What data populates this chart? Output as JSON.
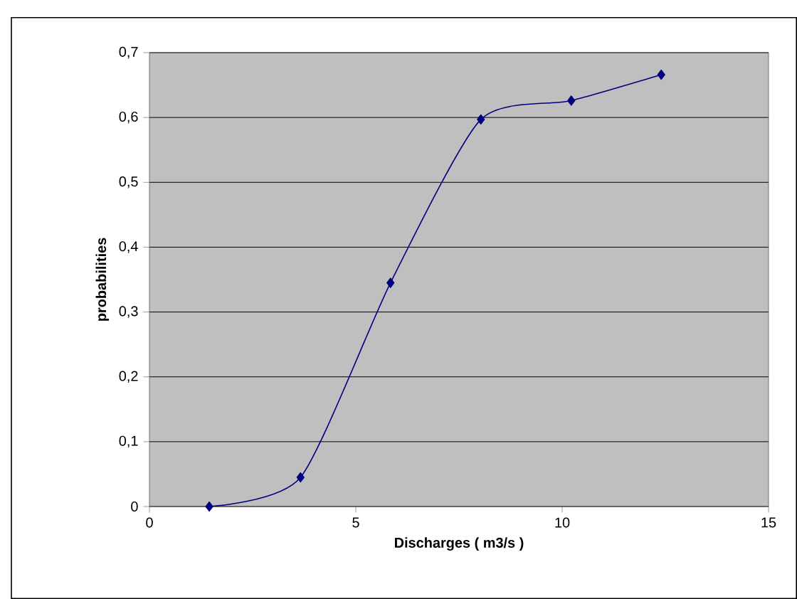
{
  "chart_data": {
    "type": "line",
    "xlabel": "Discharges ( m3/s )",
    "ylabel": "probabilities",
    "x": [
      1.45,
      3.66,
      5.84,
      8.03,
      10.22,
      12.4
    ],
    "series": [
      {
        "color": "#000080",
        "values": [
          0,
          0.045,
          0.345,
          0.597,
          0.626,
          0.666
        ]
      }
    ],
    "xlim": [
      0,
      15
    ],
    "xticks": [
      0,
      5,
      10,
      15
    ],
    "ylim": [
      0,
      0.7
    ],
    "yticks": [
      0,
      {
        "value": 0.1,
        "label": "0,1"
      },
      {
        "value": 0.2,
        "label": "0,2"
      },
      {
        "value": 0.3,
        "label": "0,3"
      },
      {
        "value": 0.4,
        "label": "0,4"
      },
      {
        "value": 0.5,
        "label": "0,5"
      },
      {
        "value": 0.6,
        "label": "0,6"
      },
      {
        "value": 0.7,
        "label": "0,7"
      }
    ],
    "grid": "y",
    "marker": "diamond",
    "line_style": "solid"
  }
}
